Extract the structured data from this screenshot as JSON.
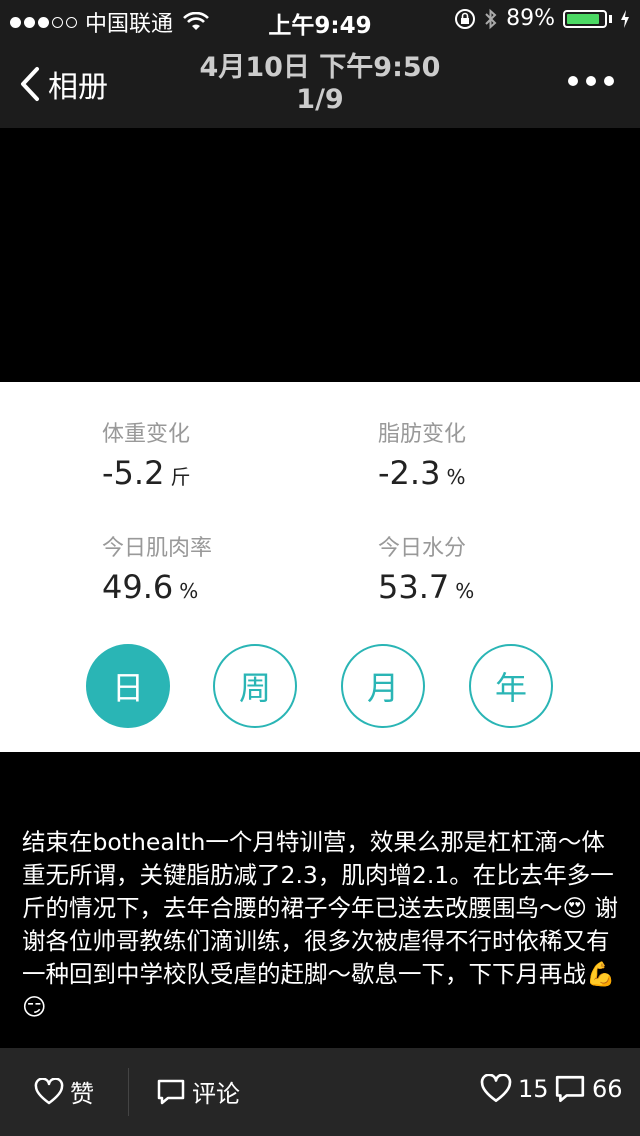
{
  "status_bar": {
    "carrier": "中国联通",
    "time": "上午9:49",
    "battery_percent": "89%",
    "battery_level": 0.89,
    "colors": {
      "battery": "#4cd964"
    }
  },
  "nav": {
    "back_label": "相册",
    "title_line1": "4月10日 下午9:50",
    "title_line2": "1/9"
  },
  "photo": {
    "stats": [
      {
        "label": "体重变化",
        "value": "-5.2",
        "unit": "斤"
      },
      {
        "label": "脂肪变化",
        "value": "-2.3",
        "unit": "%"
      },
      {
        "label": "今日肌肉率",
        "value": "49.6",
        "unit": "%"
      },
      {
        "label": "今日水分",
        "value": "53.7",
        "unit": "%"
      }
    ],
    "period_buttons": [
      "日",
      "周",
      "月",
      "年"
    ],
    "accent_color": "#2ab5b5"
  },
  "caption": {
    "text": "结束在bothealth一个月特训营，效果么那是杠杠滴～体重无所谓，关键脂肪减了2.3，肌肉增2.1。在比去年多一斤的情况下，去年合腰的裙子今年已送去改腰围鸟～😍 谢谢各位帅哥教练们滴训练，很多次被虐得不行时依稀又有一种回到中学校队受虐的赶脚～歇息一下，下下月再战💪😏"
  },
  "bottom_bar": {
    "like_label": "赞",
    "comment_label": "评论",
    "like_count": "15",
    "comment_count": "66"
  }
}
